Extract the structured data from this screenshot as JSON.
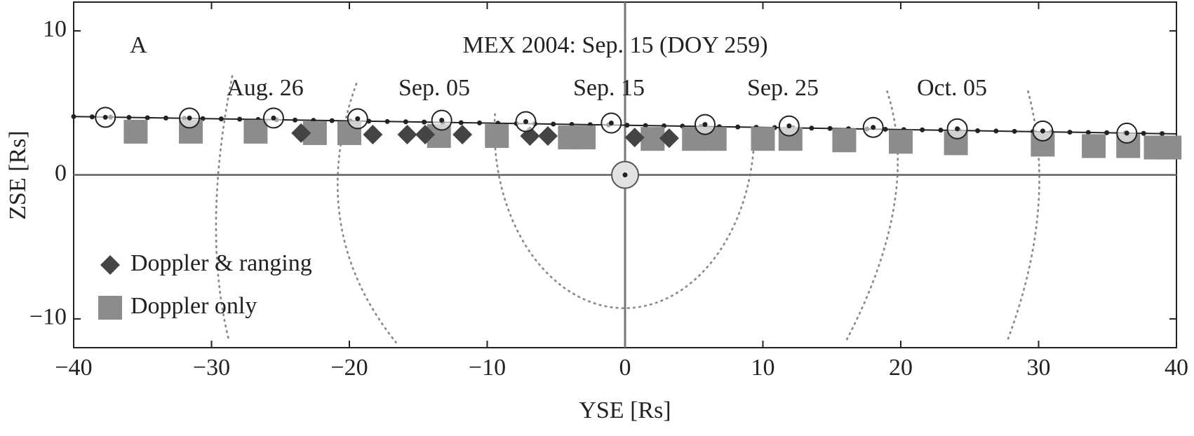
{
  "chart_data": {
    "type": "scatter",
    "title": "MEX 2004: Sep. 15 (DOY 259)",
    "panel_label": "A",
    "annotations": [
      "Aug. 26",
      "Sep. 05",
      "Sep. 15",
      "Sep. 25",
      "Oct. 05"
    ],
    "x_label": "YSE [Rs]",
    "y_label": "ZSE [Rs]",
    "xlim": [
      -40,
      40
    ],
    "ylim": [
      -12,
      12
    ],
    "xticks": [
      {
        "value": -40,
        "label": "−40"
      },
      {
        "value": -30,
        "label": "−30"
      },
      {
        "value": -20,
        "label": "−20"
      },
      {
        "value": -10,
        "label": "−10"
      },
      0,
      10,
      20,
      30,
      40
    ],
    "yticks": [
      {
        "value": -10,
        "label": "−10"
      },
      0,
      10
    ],
    "trajectory": {
      "color": "#222222",
      "x": [
        -40,
        40
      ],
      "y": [
        4.05,
        2.85
      ]
    },
    "series": [
      {
        "color": "#222222",
        "marker": "circled",
        "x": [
          -37.7,
          -31.6,
          -25.5,
          -19.4,
          -13.3,
          -7.2,
          -1.0,
          5.8,
          11.9,
          18.0,
          24.1,
          30.3,
          36.4
        ],
        "values": [
          4.0,
          3.95,
          3.95,
          3.9,
          3.8,
          3.7,
          3.6,
          3.5,
          3.4,
          3.3,
          3.2,
          3.05,
          2.9
        ]
      },
      {
        "name": "Doppler & ranging",
        "color": "#444444",
        "marker": "diamond",
        "x": [
          -23.5,
          -18.3,
          -15.8,
          -14.5,
          -11.8,
          -6.9,
          -5.6,
          0.7,
          3.2
        ],
        "values": [
          2.9,
          2.8,
          2.8,
          2.8,
          2.8,
          2.7,
          2.7,
          2.6,
          2.55
        ]
      },
      {
        "name": "Doppler only",
        "color": "#8c8c8c",
        "marker": "square",
        "x": [
          -35.5,
          -31.5,
          -26.8,
          -22.5,
          -20,
          -13.5,
          -9.3,
          -4,
          -3,
          2,
          5,
          6.5,
          10,
          12,
          15.9,
          20,
          24,
          30.3,
          34,
          36.5,
          38.5,
          39.5
        ],
        "values": [
          3.0,
          3.0,
          3.0,
          2.9,
          2.9,
          2.7,
          2.7,
          2.6,
          2.6,
          2.5,
          2.5,
          2.5,
          2.5,
          2.5,
          2.4,
          2.3,
          2.2,
          2.1,
          2.0,
          2.0,
          1.9,
          1.9
        ]
      }
    ]
  }
}
